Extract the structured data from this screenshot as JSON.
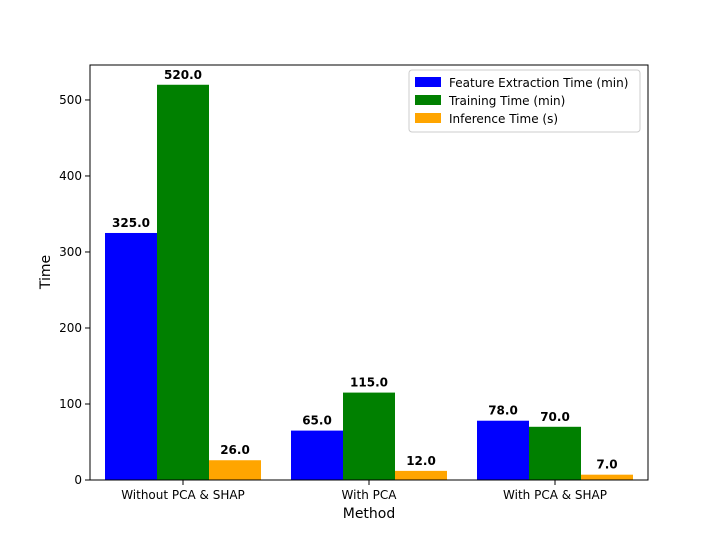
{
  "chart_data": {
    "type": "bar",
    "title": "",
    "xlabel": "Method",
    "ylabel": "Time",
    "categories": [
      "Without PCA & SHAP",
      "With PCA",
      "With PCA & SHAP"
    ],
    "ylim": [
      0,
      546
    ],
    "yticks": [
      0,
      100,
      200,
      300,
      400,
      500
    ],
    "grid": false,
    "legend_position": "top-right",
    "series": [
      {
        "name": "Feature Extraction Time (min)",
        "color": "#0000ff",
        "values": [
          325.0,
          65.0,
          78.0
        ]
      },
      {
        "name": "Training Time (min)",
        "color": "#008000",
        "values": [
          520.0,
          115.0,
          70.0
        ]
      },
      {
        "name": "Inference Time (s)",
        "color": "#ffa500",
        "values": [
          26.0,
          12.0,
          7.0
        ]
      }
    ]
  }
}
